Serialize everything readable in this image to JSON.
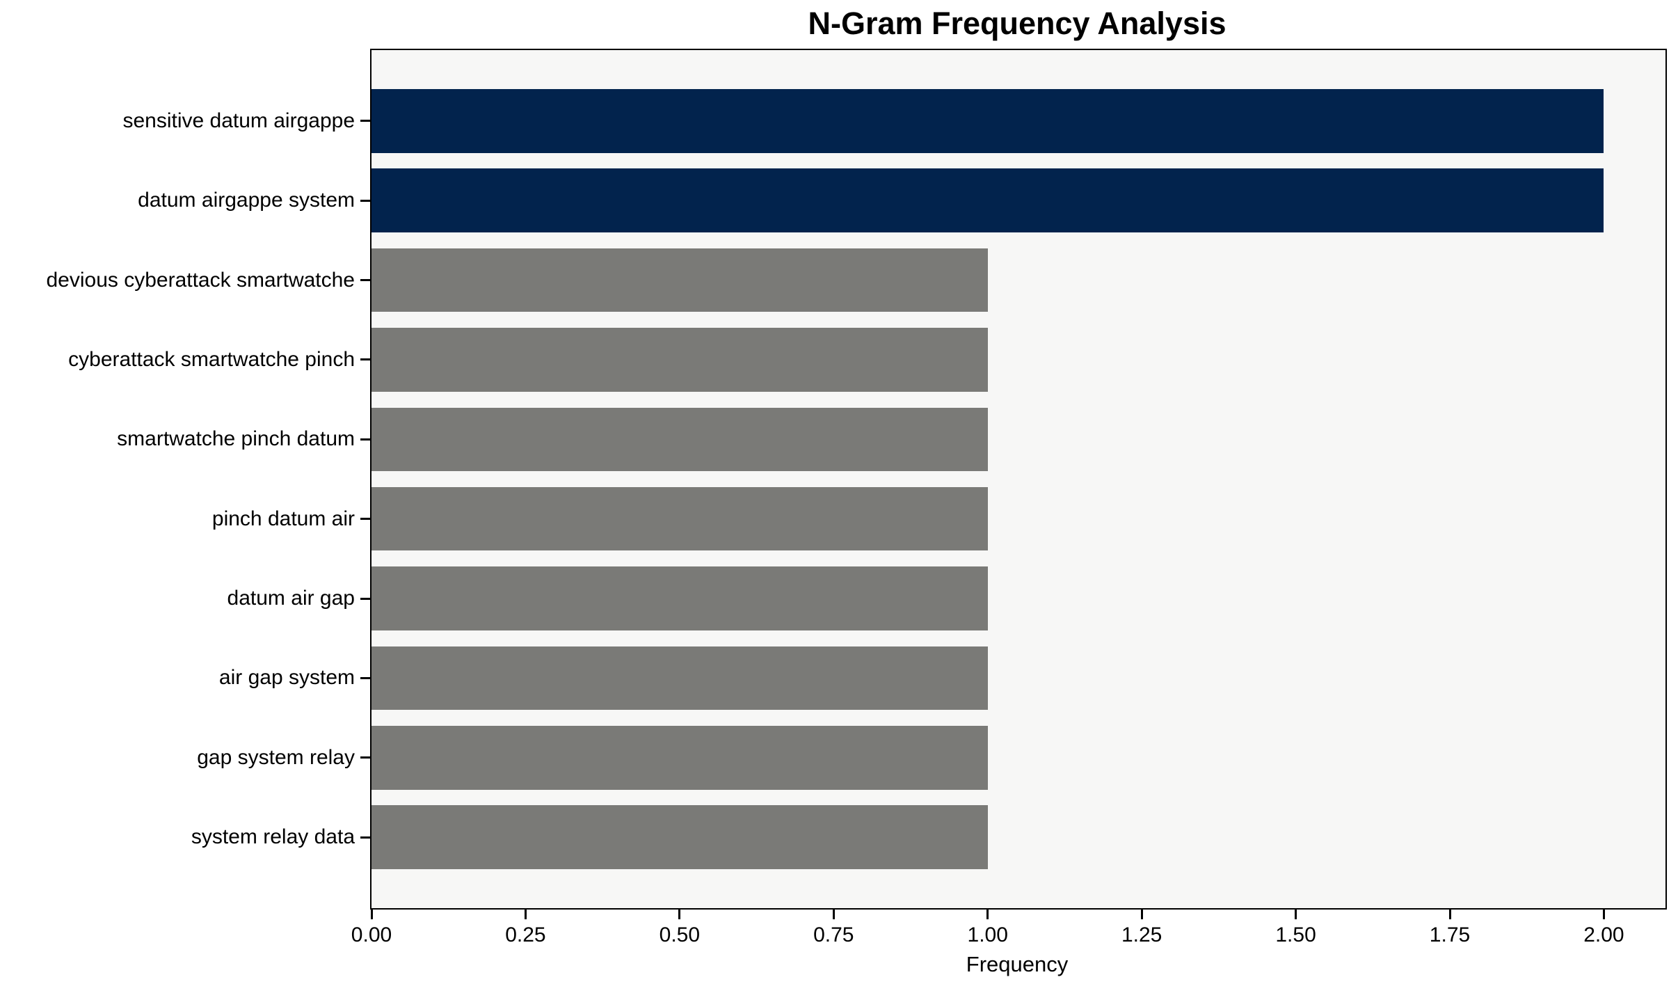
{
  "chart_data": {
    "type": "bar",
    "orientation": "horizontal",
    "title": "N-Gram Frequency Analysis",
    "xlabel": "Frequency",
    "ylabel": "",
    "categories": [
      "sensitive datum airgappe",
      "datum airgappe system",
      "devious cyberattack smartwatche",
      "cyberattack smartwatche pinch",
      "smartwatche pinch datum",
      "pinch datum air",
      "datum air gap",
      "air gap system",
      "gap system relay",
      "system relay data"
    ],
    "values": [
      2,
      2,
      1,
      1,
      1,
      1,
      1,
      1,
      1,
      1
    ],
    "bar_colors": [
      "#02234d",
      "#02234d",
      "#7a7a77",
      "#7a7a77",
      "#7a7a77",
      "#7a7a77",
      "#7a7a77",
      "#7a7a77",
      "#7a7a77",
      "#7a7a77"
    ],
    "xlim": [
      0,
      2.1
    ],
    "xticks": [
      0,
      0.25,
      0.5,
      0.75,
      1,
      1.25,
      1.5,
      1.75,
      2
    ],
    "xtick_labels": [
      "0.00",
      "0.25",
      "0.50",
      "0.75",
      "1.00",
      "1.25",
      "1.50",
      "1.75",
      "2.00"
    ],
    "grid": false,
    "legend": "none",
    "colors": {
      "highlight": "#02234d",
      "default_bar": "#7a7a77",
      "plot_background": "#f7f7f6",
      "frame": "#000000",
      "text": "#000000"
    }
  }
}
